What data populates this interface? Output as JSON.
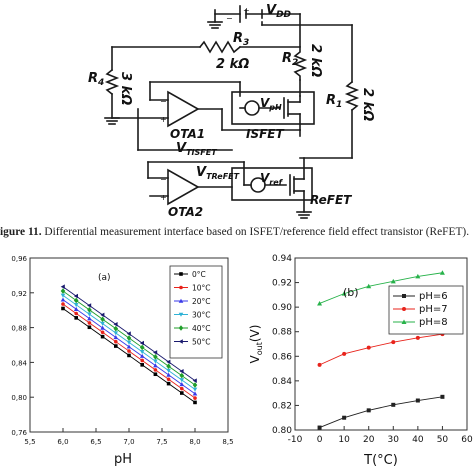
{
  "circuit": {
    "labels": {
      "vdd": "V",
      "vdd_sub": "DD",
      "r3": "R",
      "r3_sub": "3",
      "r3_value": "2 kΩ",
      "r2": "R",
      "r2_sub": "2",
      "r2_value": "2 kΩ",
      "r4": "R",
      "r4_sub": "4",
      "r4_value": "3 kΩ",
      "r1": "R",
      "r1_sub": "1",
      "r1_value": "2 kΩ",
      "vph": "V",
      "vph_sub": "pH",
      "isfet": "ISFET",
      "ota1": "OTA1",
      "vtisfet": "V",
      "vtisfet_sub": "TISFET",
      "vtrefet": "V",
      "vtrefet_sub": "TReFET",
      "vref": "V",
      "vref_sub": "ref",
      "refet": "ReFET",
      "ota2": "OTA2"
    }
  },
  "caption": {
    "label": "igure 11.",
    "text": " Differential measurement interface based on ISFET/reference field effect transistor (ReFET)."
  },
  "chart_data": [
    {
      "type": "line",
      "panel_label": "(a)",
      "xlabel": "pH",
      "ylabel": "",
      "xlim": [
        5.5,
        8.5
      ],
      "ylim": [
        0.76,
        0.96
      ],
      "xticks": [
        "5,5",
        "6,0",
        "6,5",
        "7,0",
        "7,5",
        "8,0",
        "8,5"
      ],
      "yticks": [
        "0,76",
        "0,80",
        "0,84",
        "0,88",
        "0,92",
        "0,96"
      ],
      "x": [
        6.0,
        6.2,
        6.4,
        6.6,
        6.8,
        7.0,
        7.2,
        7.4,
        7.6,
        7.8,
        8.0
      ],
      "series": [
        {
          "name": "0°C",
          "color": "#000000",
          "marker": "square",
          "values": [
            0.902,
            0.8912,
            0.8804,
            0.8696,
            0.8588,
            0.848,
            0.8372,
            0.8264,
            0.8156,
            0.8048,
            0.794
          ]
        },
        {
          "name": "10°C",
          "color": "#e8231b",
          "marker": "circle",
          "values": [
            0.907,
            0.8962,
            0.8854,
            0.8746,
            0.8638,
            0.853,
            0.8422,
            0.8314,
            0.8206,
            0.8098,
            0.799
          ]
        },
        {
          "name": "20°C",
          "color": "#3a3ae8",
          "marker": "triangle-up",
          "values": [
            0.912,
            0.9012,
            0.8904,
            0.8796,
            0.8688,
            0.858,
            0.8472,
            0.8364,
            0.8256,
            0.8148,
            0.804
          ]
        },
        {
          "name": "30°C",
          "color": "#2fb2d6",
          "marker": "triangle-down",
          "values": [
            0.917,
            0.9062,
            0.8954,
            0.8846,
            0.8738,
            0.863,
            0.8522,
            0.8414,
            0.8306,
            0.8198,
            0.809
          ]
        },
        {
          "name": "40°C",
          "color": "#1f9e2a",
          "marker": "diamond",
          "values": [
            0.922,
            0.9112,
            0.9004,
            0.8896,
            0.8788,
            0.868,
            0.8572,
            0.8464,
            0.8356,
            0.8248,
            0.814
          ]
        },
        {
          "name": "50°C",
          "color": "#1a1a6e",
          "marker": "triangle-left",
          "values": [
            0.927,
            0.9162,
            0.9054,
            0.8946,
            0.8838,
            0.873,
            0.8622,
            0.8514,
            0.8406,
            0.8298,
            0.819
          ]
        }
      ],
      "legend": "top-right"
    },
    {
      "type": "line",
      "panel_label": "(b)",
      "xlabel": "T(°C)",
      "ylabel": "V",
      "ylabel_sub": "out",
      "ylabel_unit": "(V)",
      "xlim": [
        -10,
        60
      ],
      "ylim": [
        0.8,
        0.94
      ],
      "xticks": [
        "-10",
        "0",
        "10",
        "20",
        "30",
        "40",
        "50",
        "60"
      ],
      "yticks": [
        "0.80",
        "0.82",
        "0.84",
        "0.86",
        "0.88",
        "0.90",
        "0.92",
        "0.94"
      ],
      "x": [
        0,
        10,
        20,
        30,
        40,
        50
      ],
      "series": [
        {
          "name": "pH=6",
          "color": "#222222",
          "marker": "square",
          "values": [
            0.802,
            0.81,
            0.816,
            0.8205,
            0.824,
            0.827
          ]
        },
        {
          "name": "pH=7",
          "color": "#e8231b",
          "marker": "circle",
          "values": [
            0.853,
            0.862,
            0.867,
            0.8715,
            0.875,
            0.878
          ]
        },
        {
          "name": "pH=8",
          "color": "#27b24a",
          "marker": "triangle-up",
          "values": [
            0.903,
            0.911,
            0.917,
            0.921,
            0.925,
            0.928
          ]
        }
      ],
      "legend": "top-right"
    }
  ]
}
